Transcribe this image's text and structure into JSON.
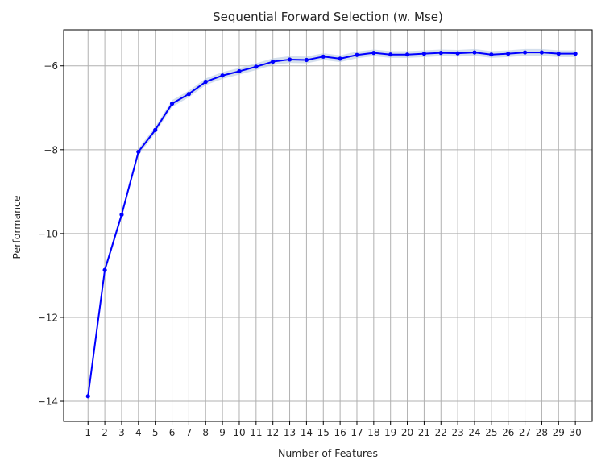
{
  "chart_data": {
    "type": "line",
    "title": "Sequential Forward Selection (w. Mse)",
    "xlabel": "Number of Features",
    "ylabel": "Performance",
    "x": [
      1,
      2,
      3,
      4,
      5,
      6,
      7,
      8,
      9,
      10,
      11,
      12,
      13,
      14,
      15,
      16,
      17,
      18,
      19,
      20,
      21,
      22,
      23,
      24,
      25,
      26,
      27,
      28,
      29,
      30
    ],
    "y": [
      -13.88,
      -10.87,
      -9.55,
      -8.05,
      -7.53,
      -6.9,
      -6.67,
      -6.38,
      -6.23,
      -6.13,
      -6.02,
      -5.9,
      -5.85,
      -5.86,
      -5.78,
      -5.83,
      -5.74,
      -5.69,
      -5.73,
      -5.73,
      -5.71,
      -5.69,
      -5.7,
      -5.68,
      -5.73,
      -5.71,
      -5.68,
      -5.68,
      -5.71,
      -5.71
    ],
    "band": 0.08,
    "xticks": [
      "1",
      "2",
      "3",
      "4",
      "5",
      "6",
      "7",
      "8",
      "9",
      "10",
      "11",
      "12",
      "13",
      "14",
      "15",
      "16",
      "17",
      "18",
      "19",
      "20",
      "21",
      "22",
      "23",
      "24",
      "25",
      "26",
      "27",
      "28",
      "29",
      "30"
    ],
    "yticks": [
      -14,
      -12,
      -10,
      -8,
      -6
    ],
    "ytick_labels": [
      "−14",
      "−12",
      "−10",
      "−8",
      "−6"
    ],
    "xlim": [
      -0.45,
      31.0
    ],
    "ylim": [
      -14.48,
      -5.14
    ],
    "grid": true,
    "colors": {
      "line": "#0000ff",
      "band": "#b0c4de",
      "grid": "#b0b0b0",
      "axes": "#000000"
    }
  }
}
